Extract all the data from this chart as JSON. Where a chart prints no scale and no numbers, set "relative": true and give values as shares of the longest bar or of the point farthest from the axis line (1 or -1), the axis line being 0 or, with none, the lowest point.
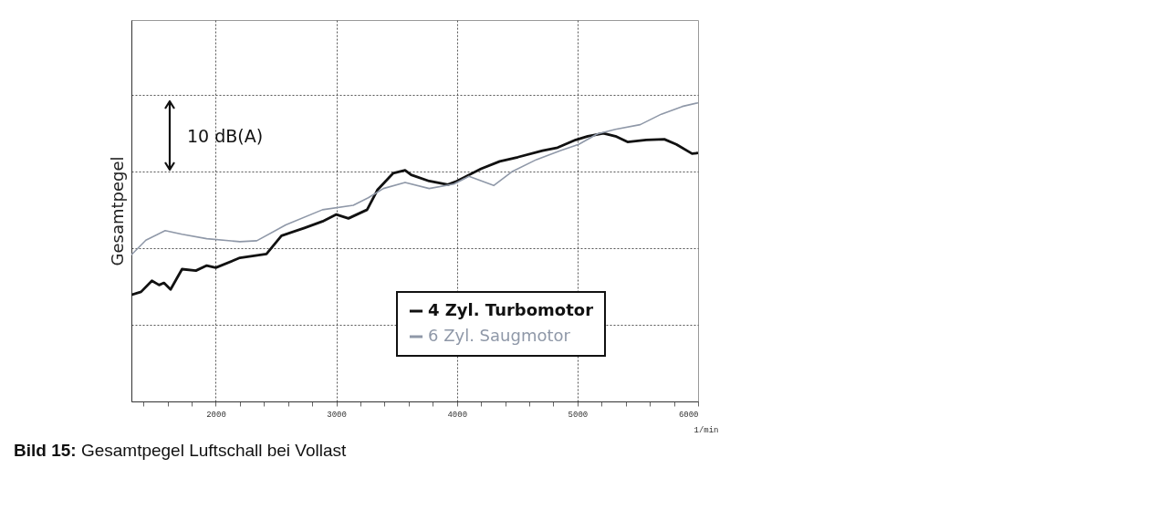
{
  "chart_data": {
    "type": "line",
    "relative": true,
    "ylabel": "Gesamtpegel",
    "xlabel": "1/min",
    "grid": true,
    "legend": "bottom right",
    "tick_labels": "x",
    "annotations": [
      "10 dB(A)",
      "Bild 15: Gesamtpegel Luftschall bei Vollast"
    ],
    "xlim": [
      1300,
      6000
    ],
    "xticks": [
      {
        "value": 1400,
        "label": null
      },
      {
        "value": 1600,
        "label": null
      },
      {
        "value": 1800,
        "label": null
      },
      2000,
      {
        "value": 2200,
        "label": null
      },
      {
        "value": 2400,
        "label": null
      },
      {
        "value": 2600,
        "label": null
      },
      {
        "value": 2800,
        "label": null
      },
      3000,
      {
        "value": 3200,
        "label": null
      },
      {
        "value": 3400,
        "label": null
      },
      {
        "value": 3600,
        "label": null
      },
      {
        "value": 3800,
        "label": null
      },
      4000,
      {
        "value": 4200,
        "label": null
      },
      {
        "value": 4400,
        "label": null
      },
      {
        "value": 4600,
        "label": null
      },
      {
        "value": 4800,
        "label": null
      },
      5000,
      {
        "value": 5200,
        "label": null
      },
      {
        "value": 5400,
        "label": null
      },
      {
        "value": 5600,
        "label": null
      },
      {
        "value": 5800,
        "label": null
      },
      6000
    ],
    "series": [
      {
        "name": "4 Zyl. Turbomotor",
        "color": "#111111",
        "x": [
          1300,
          1380,
          1470,
          1530,
          1570,
          1625,
          1720,
          1835,
          1925,
          2000,
          2200,
          2420,
          2545,
          2735,
          2885,
          3000,
          3100,
          3255,
          3340,
          3470,
          3570,
          3620,
          3770,
          3925,
          4000,
          4200,
          4355,
          4505,
          4710,
          4835,
          4985,
          5085,
          5215,
          5315,
          5415,
          5570,
          5720,
          5820,
          5950,
          6000
        ],
        "values": [
          0.357,
          0.367,
          0.404,
          0.39,
          0.397,
          0.375,
          0.443,
          0.438,
          0.455,
          0.448,
          0.481,
          0.494,
          0.555,
          0.581,
          0.603,
          0.626,
          0.613,
          0.642,
          0.708,
          0.764,
          0.774,
          0.759,
          0.738,
          0.726,
          0.738,
          0.779,
          0.804,
          0.818,
          0.84,
          0.85,
          0.876,
          0.888,
          0.898,
          0.888,
          0.869,
          0.876,
          0.878,
          0.861,
          0.83,
          0.832
        ]
      },
      {
        "name": "6 Zyl. Saugmotor",
        "color": "#8f98a8",
        "x": [
          1300,
          1420,
          1580,
          1720,
          1925,
          2200,
          2340,
          2580,
          2885,
          3140,
          3265,
          3390,
          3570,
          3770,
          3975,
          4100,
          4305,
          4455,
          4660,
          4860,
          5010,
          5165,
          5315,
          5520,
          5695,
          5870,
          6000
        ],
        "values": [
          0.491,
          0.54,
          0.572,
          0.56,
          0.545,
          0.535,
          0.538,
          0.591,
          0.642,
          0.657,
          0.682,
          0.713,
          0.733,
          0.713,
          0.728,
          0.754,
          0.723,
          0.769,
          0.81,
          0.84,
          0.861,
          0.896,
          0.911,
          0.927,
          0.962,
          0.988,
          1
        ]
      }
    ]
  }
}
